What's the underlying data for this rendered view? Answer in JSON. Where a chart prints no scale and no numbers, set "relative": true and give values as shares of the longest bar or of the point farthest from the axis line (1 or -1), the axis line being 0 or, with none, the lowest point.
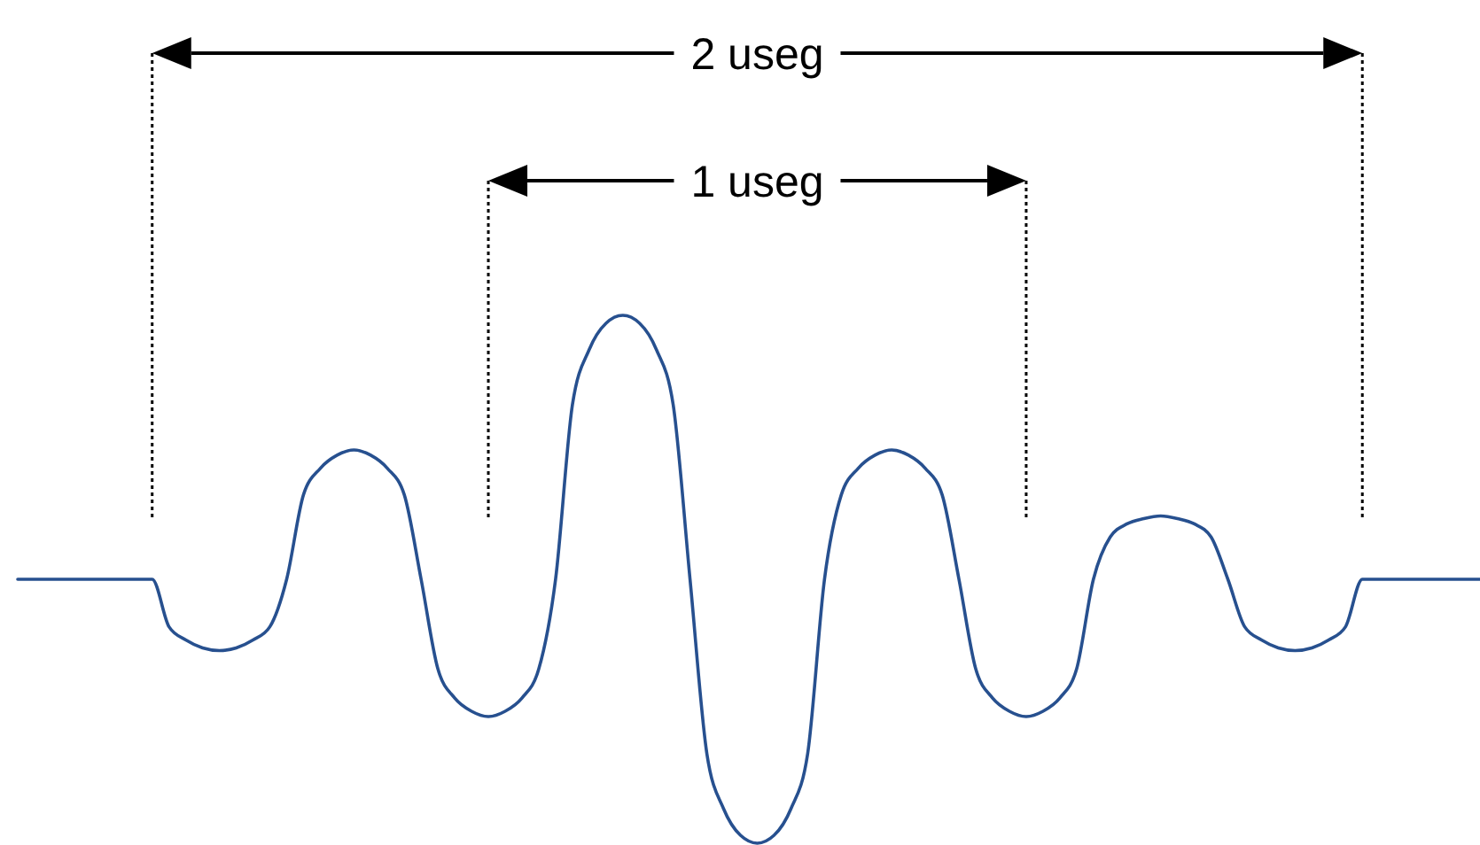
{
  "chart_data": {
    "type": "line",
    "relative": true,
    "categories": [
      null,
      null,
      null,
      null,
      null,
      null,
      null,
      null,
      null,
      null,
      null,
      null,
      null,
      null,
      null,
      null,
      null,
      null,
      null,
      null,
      null,
      null,
      null,
      null,
      null,
      null,
      null,
      null,
      null,
      null,
      null,
      null,
      null,
      null,
      null,
      null,
      null,
      null,
      null,
      null,
      null,
      null,
      null,
      null,
      null,
      null,
      null,
      null,
      null,
      null,
      null,
      null,
      null,
      null,
      null,
      null,
      null,
      null,
      null,
      null,
      null,
      null,
      null,
      null,
      null,
      null,
      null,
      null,
      null,
      null,
      null,
      null,
      null,
      null,
      null,
      null,
      null,
      null,
      null,
      null,
      null,
      null,
      null,
      null,
      null,
      null,
      null,
      null
    ],
    "series": [
      {
        "color": "#27508f",
        "values": [
          0.5,
          0.5,
          0.5,
          0.5,
          0.5,
          0.5,
          0.5,
          0.5,
          0.5,
          0.41,
          0.385,
          0.37,
          0.365,
          0.37,
          0.385,
          0.41,
          0.5,
          0.66,
          0.71,
          0.735,
          0.745,
          0.735,
          0.71,
          0.66,
          0.5,
          0.33,
          0.275,
          0.25,
          0.24,
          0.25,
          0.275,
          0.33,
          0.5,
          0.83,
          0.935,
          0.985,
          1,
          0.985,
          0.935,
          0.83,
          0.5,
          0.17,
          0.065,
          0.015,
          0,
          0.015,
          0.065,
          0.17,
          0.5,
          0.66,
          0.71,
          0.735,
          0.745,
          0.735,
          0.71,
          0.66,
          0.5,
          0.33,
          0.275,
          0.25,
          0.24,
          0.25,
          0.275,
          0.33,
          0.5,
          0.58,
          0.605,
          0.615,
          0.62,
          0.615,
          0.605,
          0.58,
          0.5,
          0.41,
          0.385,
          0.37,
          0.365,
          0.37,
          0.385,
          0.41,
          0.5,
          0.5,
          0.5,
          0.5,
          0.5,
          0.5,
          0.5,
          0.5
        ]
      }
    ],
    "annotations": [
      "2 useg",
      "1 useg"
    ],
    "marker": "none",
    "line_style": "solid"
  }
}
